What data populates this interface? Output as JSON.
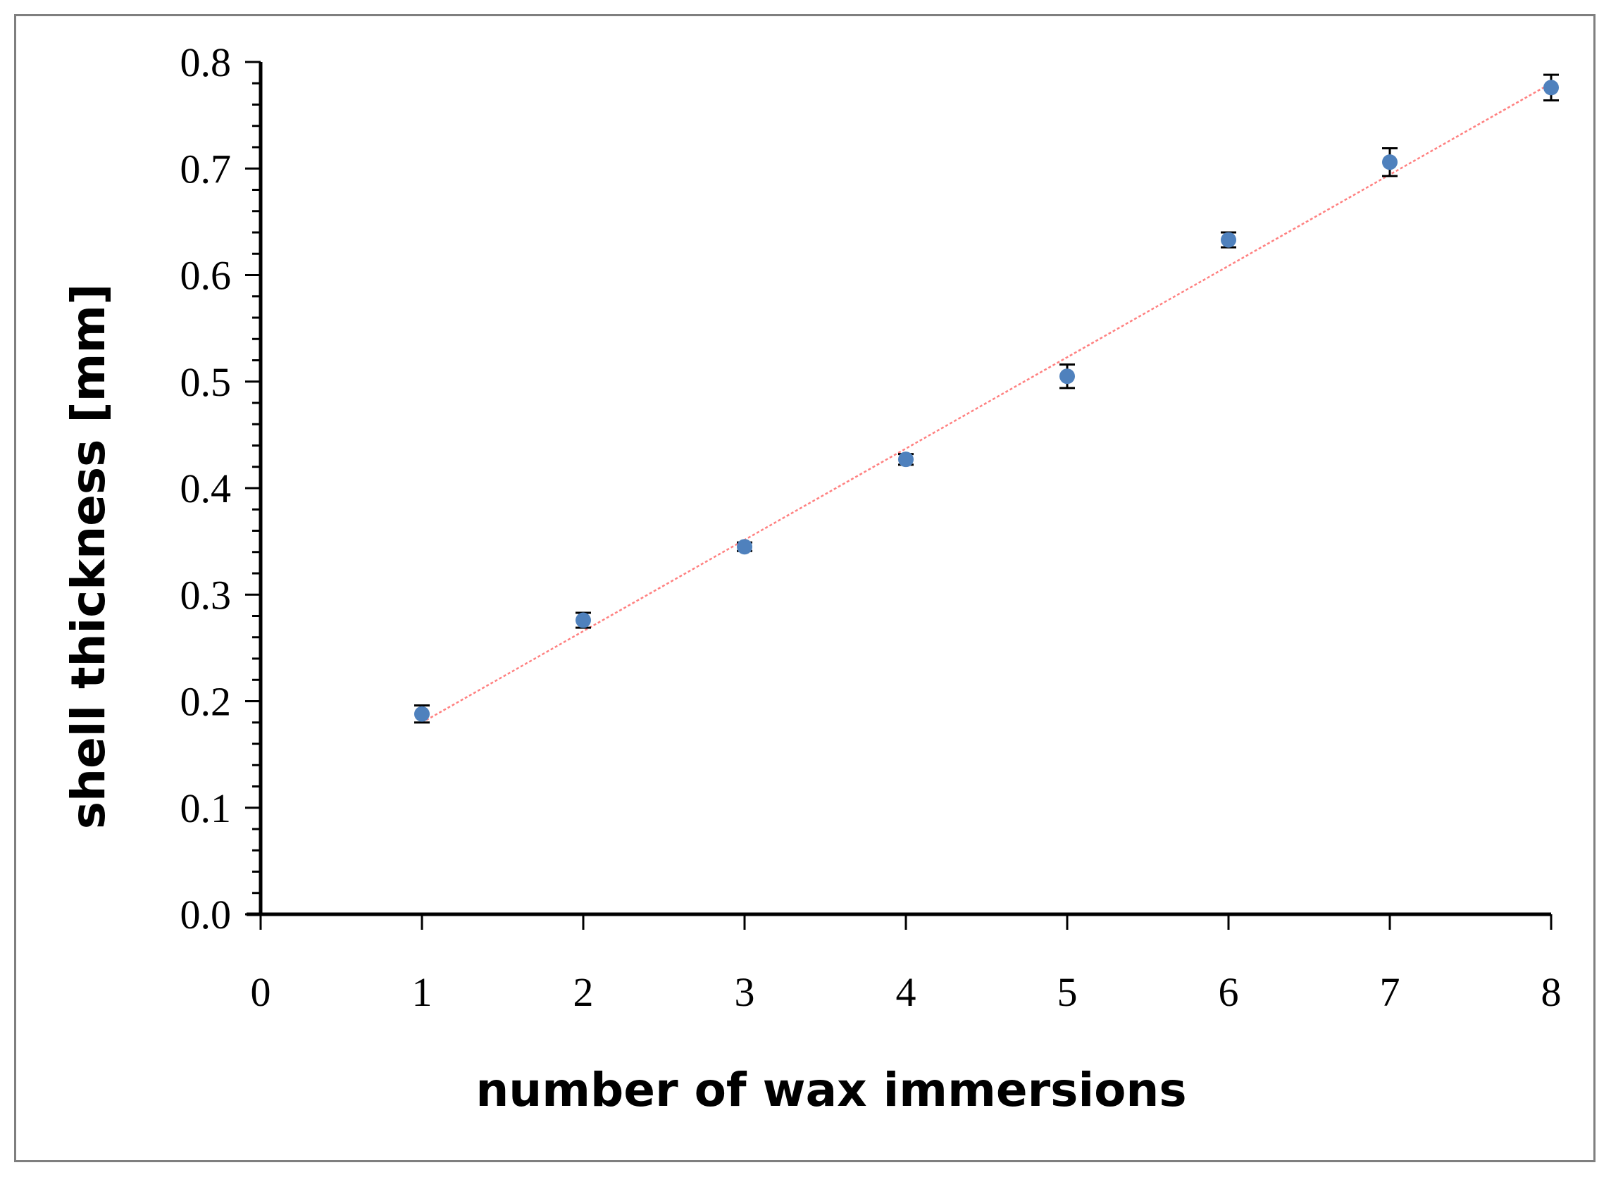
{
  "chart_data": {
    "type": "scatter",
    "xlabel": "number of wax immersions",
    "ylabel": "shell thickness [mm]",
    "xlim": [
      0,
      8
    ],
    "ylim": [
      0.0,
      0.8
    ],
    "x_ticks": [
      "0",
      "1",
      "2",
      "3",
      "4",
      "5",
      "6",
      "7",
      "8"
    ],
    "y_ticks": [
      "0.0",
      "0.1",
      "0.2",
      "0.3",
      "0.4",
      "0.5",
      "0.6",
      "0.7",
      "0.8"
    ],
    "grid": false,
    "legend": "none",
    "series": [
      {
        "x": [
          1,
          2,
          3,
          4,
          5,
          6,
          7,
          8
        ],
        "y": [
          0.188,
          0.276,
          0.345,
          0.427,
          0.505,
          0.633,
          0.706,
          0.776
        ],
        "error": [
          0.008,
          0.007,
          0.004,
          0.005,
          0.011,
          0.007,
          0.013,
          0.012
        ],
        "color": "#4f81bd"
      }
    ],
    "trendline": {
      "type": "linear",
      "color": "#ff8080",
      "from": [
        1,
        0.18
      ],
      "to": [
        8,
        0.78
      ]
    }
  }
}
